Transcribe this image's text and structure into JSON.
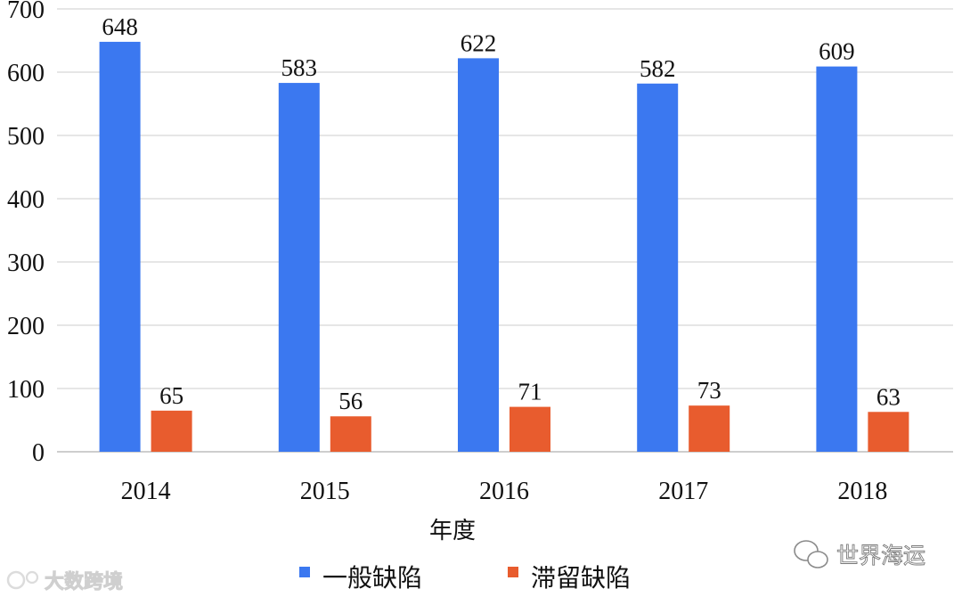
{
  "chart_data": {
    "type": "bar",
    "categories": [
      "2014",
      "2015",
      "2016",
      "2017",
      "2018"
    ],
    "series": [
      {
        "name": "一般缺陷",
        "values": [
          648,
          583,
          622,
          582,
          609
        ],
        "color": "#3b78f0"
      },
      {
        "name": "滞留缺陷",
        "values": [
          65,
          56,
          71,
          73,
          63
        ],
        "color": "#e85c2e"
      }
    ],
    "title": "",
    "xlabel": "年度",
    "ylabel": "",
    "ylim": [
      0,
      700
    ],
    "yticks": [
      0,
      100,
      200,
      300,
      400,
      500,
      600,
      700
    ],
    "grid": true,
    "legend_position": "bottom-center"
  },
  "watermarks": {
    "left": "大数跨境",
    "right": "世界海运"
  }
}
